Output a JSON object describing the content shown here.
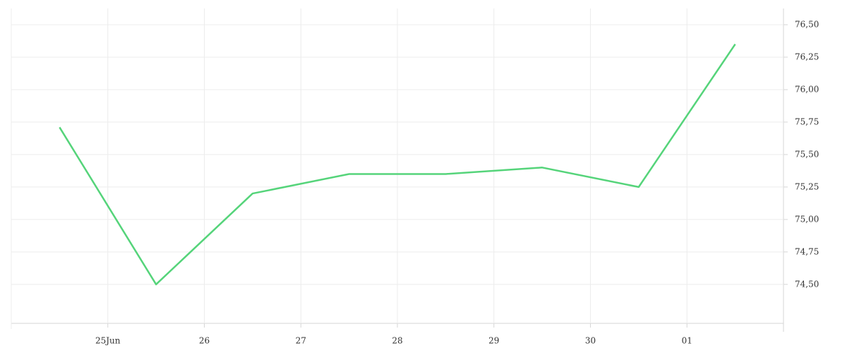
{
  "chart_data": {
    "type": "line",
    "x": [
      24.5,
      25.5,
      26.5,
      27.5,
      28.5,
      29.5,
      30.5,
      31.5
    ],
    "series": [
      {
        "color": "#55d47a",
        "values": [
          75.71,
          74.5,
          75.2,
          75.35,
          75.35,
          75.4,
          75.25,
          76.35
        ]
      }
    ],
    "xlim": [
      24,
      32
    ],
    "xticks": [
      {
        "value": 25,
        "label": "25Jun"
      },
      26,
      27,
      28,
      29,
      30,
      {
        "value": 31,
        "label": "01"
      }
    ],
    "ylim": [
      74.2,
      76.625
    ],
    "yticks": [
      {
        "value": 74.5,
        "label": "74,50"
      },
      {
        "value": 74.75,
        "label": "74,75"
      },
      {
        "value": 75,
        "label": "75,00"
      },
      {
        "value": 75.25,
        "label": "75,25"
      },
      {
        "value": 75.5,
        "label": "75,50"
      },
      {
        "value": 75.75,
        "label": "75,75"
      },
      {
        "value": 76,
        "label": "76,00"
      },
      {
        "value": 76.25,
        "label": "76,25"
      },
      {
        "value": 76.5,
        "label": "76,50"
      }
    ],
    "grid": true
  }
}
